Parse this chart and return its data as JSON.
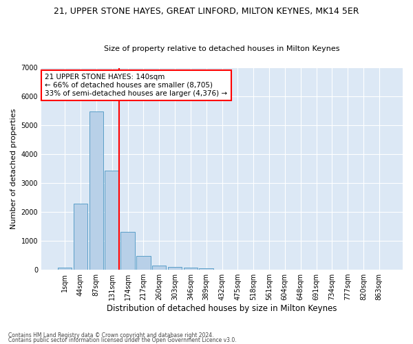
{
  "title1": "21, UPPER STONE HAYES, GREAT LINFORD, MILTON KEYNES, MK14 5ER",
  "title2": "Size of property relative to detached houses in Milton Keynes",
  "xlabel": "Distribution of detached houses by size in Milton Keynes",
  "ylabel": "Number of detached properties",
  "footer1": "Contains HM Land Registry data © Crown copyright and database right 2024.",
  "footer2": "Contains public sector information licensed under the Open Government Licence v3.0.",
  "bar_labels": [
    "1sqm",
    "44sqm",
    "87sqm",
    "131sqm",
    "174sqm",
    "217sqm",
    "260sqm",
    "303sqm",
    "346sqm",
    "389sqm",
    "432sqm",
    "475sqm",
    "518sqm",
    "561sqm",
    "604sqm",
    "648sqm",
    "691sqm",
    "734sqm",
    "777sqm",
    "820sqm",
    "863sqm"
  ],
  "bar_values": [
    80,
    2280,
    5480,
    3430,
    1310,
    470,
    155,
    90,
    65,
    40,
    0,
    0,
    0,
    0,
    0,
    0,
    0,
    0,
    0,
    0,
    0
  ],
  "bar_color": "#b8d0e8",
  "bar_edge_color": "#5a9fc8",
  "background_color": "#dce8f5",
  "grid_color": "#ffffff",
  "vline_color": "red",
  "annotation_text": "21 UPPER STONE HAYES: 140sqm\n← 66% of detached houses are smaller (8,705)\n33% of semi-detached houses are larger (4,376) →",
  "annotation_box_color": "white",
  "annotation_box_edge": "red",
  "ylim": [
    0,
    7000
  ],
  "yticks": [
    0,
    1000,
    2000,
    3000,
    4000,
    5000,
    6000,
    7000
  ]
}
